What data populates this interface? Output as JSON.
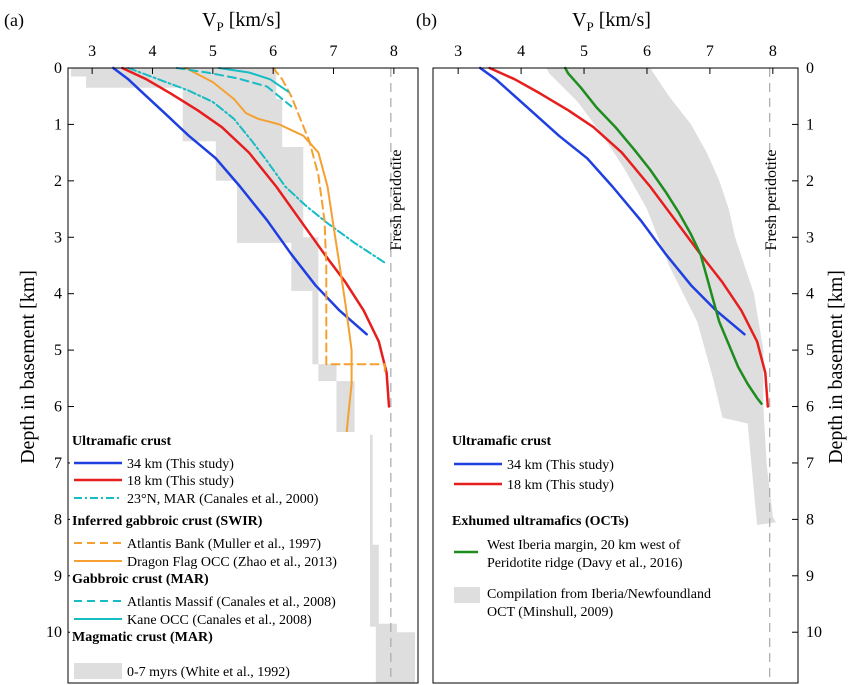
{
  "chart_data": [
    {
      "panel": "(a)",
      "type": "line",
      "xlabel": "V",
      "xlabel_sub": "P",
      "xlabel_unit": " [km/s]",
      "ylabel": "Depth in basement [km]",
      "xlim": [
        2.6,
        8.4
      ],
      "ylim": [
        0,
        10.9
      ],
      "y_inverted": true,
      "x_ticks": [
        3,
        4,
        5,
        6,
        7,
        8
      ],
      "y_ticks": [
        0,
        1,
        2,
        3,
        4,
        5,
        6,
        7,
        8,
        9,
        10
      ],
      "reference_line": {
        "x": 7.95,
        "label": "Fresh peridotite",
        "style": "dashed",
        "color": "#aaaaaa"
      },
      "bands": [
        {
          "name": "0-7 myrs (White et al., 1992)",
          "color": "#dedede",
          "polygon": [
            [
              2.65,
              0
            ],
            [
              6.05,
              0
            ],
            [
              6.05,
              0.55
            ],
            [
              6.15,
              0.55
            ],
            [
              6.15,
              1.4
            ],
            [
              6.5,
              1.4
            ],
            [
              6.5,
              3.0
            ],
            [
              6.75,
              3.0
            ],
            [
              6.75,
              5.55
            ],
            [
              7.35,
              5.55
            ],
            [
              7.35,
              6.5
            ],
            [
              7.65,
              6.5
            ],
            [
              7.65,
              8.45
            ],
            [
              7.75,
              8.45
            ],
            [
              7.75,
              9.85
            ],
            [
              8.05,
              9.85
            ],
            [
              8.05,
              10.0
            ],
            [
              8.35,
              10.0
            ],
            [
              8.35,
              10.9
            ],
            [
              7.7,
              10.9
            ],
            [
              7.7,
              9.9
            ],
            [
              7.4,
              9.9
            ],
            [
              7.4,
              8.1
            ],
            [
              7.25,
              8.1
            ],
            [
              7.25,
              6.7
            ],
            [
              7.05,
              6.7
            ],
            [
              7.05,
              5.25
            ],
            [
              6.65,
              5.25
            ],
            [
              6.65,
              3.95
            ],
            [
              6.3,
              3.95
            ],
            [
              6.3,
              3.1
            ],
            [
              5.4,
              3.1
            ],
            [
              5.4,
              2.0
            ],
            [
              5.05,
              2.0
            ],
            [
              5.05,
              1.3
            ],
            [
              4.5,
              1.3
            ],
            [
              4.5,
              0.35
            ],
            [
              2.9,
              0.35
            ],
            [
              2.9,
              0.15
            ],
            [
              2.65,
              0.15
            ],
            [
              2.65,
              0
            ]
          ]
        }
      ],
      "series": [
        {
          "name": "34 km (This study)",
          "color": "#1f3fe0",
          "dash": "",
          "width": 2.5,
          "x": [
            3.35,
            3.6,
            3.85,
            4.2,
            4.6,
            5.05,
            5.45,
            5.9,
            6.3,
            6.7,
            7.1,
            7.55
          ],
          "y": [
            0,
            0.2,
            0.45,
            0.8,
            1.2,
            1.6,
            2.1,
            2.7,
            3.3,
            3.85,
            4.3,
            4.72
          ]
        },
        {
          "name": "18 km (This study)",
          "color": "#e61e1e",
          "dash": "",
          "width": 2.5,
          "x": [
            3.5,
            3.9,
            4.3,
            4.75,
            5.15,
            5.6,
            6.05,
            6.45,
            6.85,
            7.2,
            7.5,
            7.75,
            7.88,
            7.92
          ],
          "y": [
            0,
            0.2,
            0.45,
            0.75,
            1.05,
            1.5,
            2.1,
            2.7,
            3.3,
            3.8,
            4.3,
            4.85,
            5.4,
            6.0
          ]
        },
        {
          "name": "23°N, MAR (Canales et al., 2000)",
          "color": "#17bcc4",
          "dash": "8,3,2,3",
          "width": 2,
          "x": [
            3.6,
            4.1,
            4.6,
            5.0,
            5.35,
            5.65,
            5.9,
            6.2,
            6.55,
            6.9,
            7.35,
            7.85
          ],
          "y": [
            0,
            0.2,
            0.4,
            0.6,
            0.9,
            1.3,
            1.65,
            2.1,
            2.45,
            2.75,
            3.1,
            3.45
          ]
        },
        {
          "name": "Atlantis Bank (Muller et al., 1997)",
          "color": "#f5a030",
          "dash": "8,5",
          "width": 2,
          "x": [
            6.0,
            6.15,
            6.3,
            6.45,
            6.6,
            6.75,
            6.85,
            6.88,
            6.88,
            7.85,
            7.85
          ],
          "y": [
            0,
            0.2,
            0.5,
            0.9,
            1.3,
            1.9,
            2.7,
            3.5,
            5.25,
            5.25,
            5.4
          ]
        },
        {
          "name": "Dragon Flag OCC (Zhao et al., 2013)",
          "color": "#f5a030",
          "dash": "",
          "width": 2,
          "x": [
            4.55,
            5.0,
            5.35,
            5.55,
            5.75,
            6.1,
            6.5,
            6.75,
            6.9,
            7.0,
            7.1,
            7.2,
            7.3,
            7.3,
            7.25,
            7.2
          ],
          "y": [
            0,
            0.25,
            0.55,
            0.8,
            0.9,
            1.0,
            1.2,
            1.5,
            2.1,
            2.8,
            3.5,
            4.2,
            5.0,
            5.6,
            6.1,
            6.65
          ]
        },
        {
          "name": "Atlantis Massif (Canales et al., 2008)",
          "color": "#17bcc4",
          "dash": "8,5",
          "width": 2,
          "x": [
            4.4,
            4.9,
            5.4,
            5.9,
            6.3
          ],
          "y": [
            0,
            0.08,
            0.18,
            0.33,
            0.68
          ]
        },
        {
          "name": "Kane OCC (Canales et al., 2008)",
          "color": "#17bcc4",
          "dash": "",
          "width": 2,
          "x": [
            5.1,
            5.6,
            5.95,
            6.25
          ],
          "y": [
            0,
            0.08,
            0.2,
            0.42
          ]
        }
      ],
      "legend": {
        "groups": [
          {
            "heading": "Ultramafic crust",
            "items": [
              "34 km (This study)",
              "18 km (This study)",
              "23°N, MAR (Canales et al., 2000)"
            ]
          },
          {
            "heading": "Inferred gabbroic crust (SWIR)",
            "items": [
              "Atlantis Bank (Muller et al., 1997)",
              "Dragon Flag OCC (Zhao et al., 2013)"
            ]
          },
          {
            "heading": "Gabbroic crust (MAR)",
            "items": [
              "Atlantis Massif (Canales et al., 2008)",
              "Kane OCC (Canales et al., 2008)"
            ]
          },
          {
            "heading": "Magmatic crust (MAR)",
            "items": [
              "0-7 myrs (White et al., 1992)"
            ]
          }
        ]
      }
    },
    {
      "panel": "(b)",
      "type": "line",
      "xlabel": "V",
      "xlabel_sub": "P",
      "xlabel_unit": " [km/s]",
      "ylabel": "Depth in basement [km]",
      "xlim": [
        2.6,
        8.4
      ],
      "ylim": [
        0,
        10.9
      ],
      "y_inverted": true,
      "x_ticks": [
        3,
        4,
        5,
        6,
        7,
        8
      ],
      "y_ticks": [
        0,
        1,
        2,
        3,
        4,
        5,
        6,
        7,
        8,
        9,
        10
      ],
      "reference_line": {
        "x": 7.95,
        "label": "Fresh peridotite",
        "style": "dashed",
        "color": "#aaaaaa"
      },
      "bands": [
        {
          "name": "Compilation from Iberia/Newfoundland OCT (Minshull, 2009)",
          "color": "#dedede",
          "polygon": [
            [
              4.4,
              0
            ],
            [
              6.05,
              0
            ],
            [
              6.35,
              0.5
            ],
            [
              6.7,
              1.0
            ],
            [
              6.95,
              1.5
            ],
            [
              7.15,
              2.0
            ],
            [
              7.3,
              2.5
            ],
            [
              7.4,
              3.0
            ],
            [
              7.55,
              3.5
            ],
            [
              7.7,
              4.0
            ],
            [
              7.85,
              5.0
            ],
            [
              7.85,
              6.0
            ],
            [
              7.9,
              7.0
            ],
            [
              8.0,
              7.95
            ],
            [
              8.05,
              8.05
            ],
            [
              7.75,
              8.1
            ],
            [
              7.7,
              7.5
            ],
            [
              7.6,
              6.3
            ],
            [
              7.2,
              6.2
            ],
            [
              7.05,
              5.5
            ],
            [
              6.8,
              4.5
            ],
            [
              6.35,
              3.5
            ],
            [
              6.0,
              2.5
            ],
            [
              5.65,
              1.8
            ],
            [
              5.3,
              1.2
            ],
            [
              4.9,
              0.6
            ],
            [
              4.45,
              0.1
            ],
            [
              4.4,
              0
            ]
          ]
        }
      ],
      "series": [
        {
          "name": "34 km (This study)",
          "color": "#1f3fe0",
          "dash": "",
          "width": 2.5,
          "x": [
            3.35,
            3.6,
            3.85,
            4.2,
            4.6,
            5.05,
            5.45,
            5.9,
            6.3,
            6.7,
            7.1,
            7.55
          ],
          "y": [
            0,
            0.2,
            0.45,
            0.8,
            1.2,
            1.6,
            2.1,
            2.7,
            3.3,
            3.85,
            4.3,
            4.72
          ]
        },
        {
          "name": "18 km (This study)",
          "color": "#e61e1e",
          "dash": "",
          "width": 2.5,
          "x": [
            3.5,
            3.9,
            4.3,
            4.75,
            5.15,
            5.6,
            6.05,
            6.45,
            6.85,
            7.2,
            7.5,
            7.75,
            7.88,
            7.92
          ],
          "y": [
            0,
            0.2,
            0.45,
            0.75,
            1.05,
            1.5,
            2.1,
            2.7,
            3.3,
            3.8,
            4.3,
            4.85,
            5.4,
            6.0
          ]
        },
        {
          "name": "West Iberia margin, 20 km west of Peridotite ridge (Davy et al., 2016)",
          "color": "#1e8c1e",
          "dash": "",
          "width": 2.5,
          "x": [
            4.7,
            4.75,
            4.95,
            5.2,
            5.5,
            5.8,
            6.05,
            6.3,
            6.5,
            6.7,
            6.85,
            6.95,
            7.05,
            7.15,
            7.3,
            7.45,
            7.6,
            7.75,
            7.82
          ],
          "y": [
            0,
            0.1,
            0.35,
            0.7,
            1.05,
            1.45,
            1.8,
            2.2,
            2.55,
            2.95,
            3.3,
            3.7,
            4.1,
            4.5,
            4.9,
            5.3,
            5.6,
            5.85,
            5.95
          ]
        }
      ],
      "legend": {
        "groups": [
          {
            "heading": "Ultramafic crust",
            "items": [
              "34 km (This study)",
              "18 km (This study)"
            ]
          },
          {
            "heading": "Exhumed ultramafics (OCTs)",
            "items": [
              "West Iberia margin, 20 km west of Peridotite ridge (Davy et al., 2016)",
              "Compilation from Iberia/Newfoundland OCT (Minshull, 2009)"
            ]
          }
        ]
      }
    }
  ],
  "text": {
    "panel_a_tag": "(a)",
    "panel_b_tag": "(b)",
    "v": "V",
    "p": "P",
    "unit": " [km/s]",
    "ylabel": "Depth in basement [km]",
    "fresh": "Fresh peridotite",
    "a_h1": "Ultramafic crust",
    "a_i1": "34 km (This study)",
    "a_i2": "18 km (This study)",
    "a_i3": "23°N, MAR (Canales et al., 2000)",
    "a_h2": "Inferred gabbroic crust (SWIR)",
    "a_i4": "Atlantis Bank (Muller et al., 1997)",
    "a_i5": "Dragon Flag OCC (Zhao et al., 2013)",
    "a_h3": "Gabbroic crust (MAR)",
    "a_i6": "Atlantis Massif (Canales et al., 2008)",
    "a_i7": "Kane OCC (Canales et al., 2008)",
    "a_h4": "Magmatic crust (MAR)",
    "a_i8": "0-7 myrs (White et al., 1992)",
    "b_h1": "Ultramafic crust",
    "b_i1": "34 km (This study)",
    "b_i2": "18 km (This study)",
    "b_h2": "Exhumed ultramafics (OCTs)",
    "b_i3a": "West Iberia margin, 20 km west of",
    "b_i3b": "Peridotite ridge (Davy et al., 2016)",
    "b_i4a": "Compilation from Iberia/Newfoundland",
    "b_i4b": "OCT (Minshull, 2009)"
  }
}
